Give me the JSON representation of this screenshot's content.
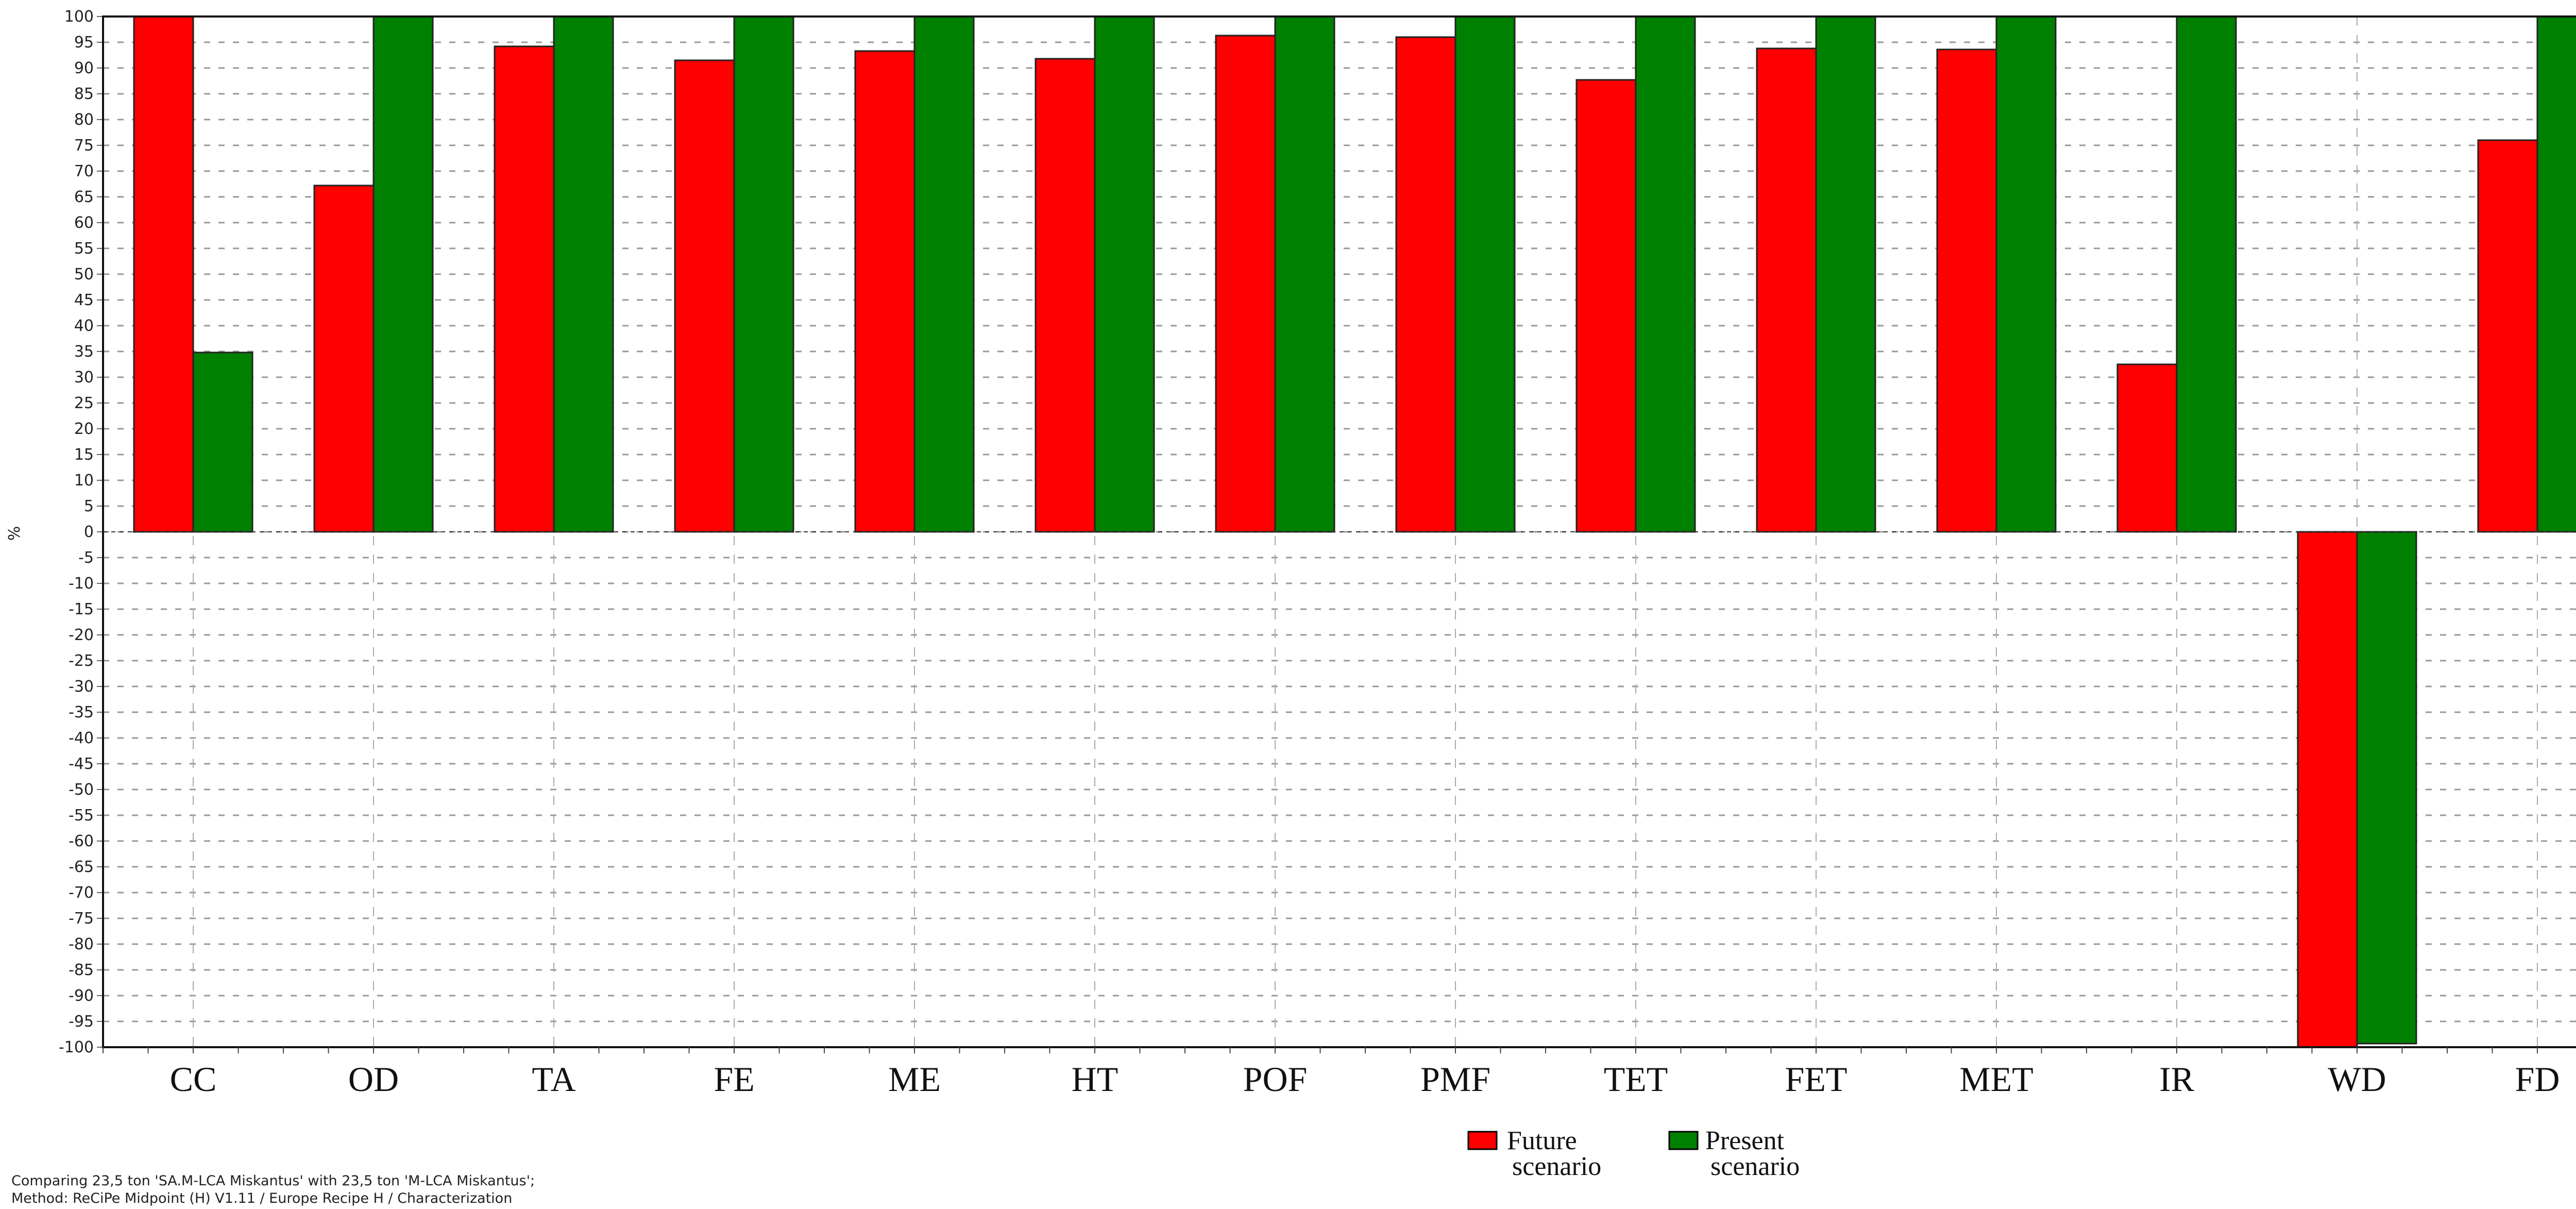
{
  "chart_data": {
    "type": "bar",
    "ylabel": "%",
    "ylim": [
      -100,
      100
    ],
    "ytick_step": 5,
    "grid": true,
    "categories": [
      "CC",
      "OD",
      "TA",
      "FE",
      "ME",
      "HT",
      "POF",
      "PMF",
      "TET",
      "FET",
      "MET",
      "IR",
      "WD",
      "FD"
    ],
    "series": [
      {
        "name": "Future scenario",
        "color": "#ff0000",
        "values": [
          100,
          67.2,
          94.2,
          91.5,
          93.3,
          91.8,
          96.3,
          96.0,
          87.7,
          93.8,
          93.6,
          32.5,
          -100,
          76.0
        ]
      },
      {
        "name": "Present scenario",
        "color": "#008000",
        "values": [
          34.8,
          100,
          100,
          100,
          100,
          100,
          100,
          100,
          100,
          100,
          100,
          100,
          -99.3,
          100
        ]
      }
    ],
    "legend": {
      "placement": "bottom-center",
      "entries": [
        {
          "line1": "Future",
          "line2": "scenario"
        },
        {
          "line1": "Present",
          "line2": "scenario"
        }
      ]
    }
  },
  "footnote": {
    "line1": "Comparing 23,5 ton 'SA.M-LCA Miskantus' with 23,5 ton 'M-LCA Miskantus';",
    "line2": "Method: ReCiPe Midpoint (H) V1.11 / Europe Recipe H / Characterization"
  }
}
